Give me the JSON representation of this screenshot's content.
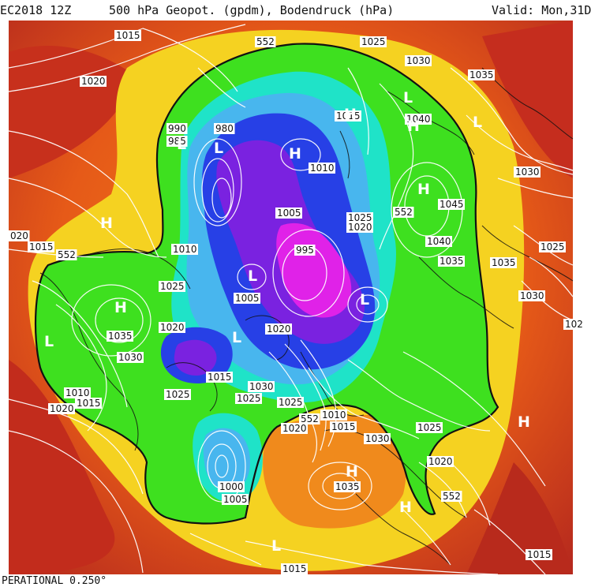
{
  "header": {
    "run": "EC2018 12Z",
    "title": "500 hPa Geopot. (gpdm), Bodendruck (hPa)",
    "valid": "Valid: Mon,31D"
  },
  "footer": {
    "text": "PERATIONAL 0.250°"
  },
  "colors": {
    "deep_red": "#b3261e",
    "red": "#d6431b",
    "orange": "#ef7a18",
    "yellow": "#f5d221",
    "green": "#3ee01f",
    "cyan": "#1fe3c8",
    "light_blue": "#48b6ee",
    "blue": "#2740e6",
    "purple": "#7a22e0",
    "magenta": "#e022e8",
    "isobar": "#ffffff",
    "coast": "#111111"
  },
  "contour_labels": [
    {
      "text": "1015"
    },
    {
      "text": "1020"
    },
    {
      "text": "552"
    },
    {
      "text": "1025"
    },
    {
      "text": "1030"
    },
    {
      "text": "1035"
    },
    {
      "text": "990"
    },
    {
      "text": "985"
    },
    {
      "text": "980"
    },
    {
      "text": "1015"
    },
    {
      "text": "1040"
    },
    {
      "text": "1010"
    },
    {
      "text": "1030"
    },
    {
      "text": "1005"
    },
    {
      "text": "1025"
    },
    {
      "text": "1020"
    },
    {
      "text": "552"
    },
    {
      "text": "1045"
    },
    {
      "text": "995"
    },
    {
      "text": "1040"
    },
    {
      "text": "1035"
    },
    {
      "text": "1035"
    },
    {
      "text": "1025"
    },
    {
      "text": "020"
    },
    {
      "text": "1015"
    },
    {
      "text": "552"
    },
    {
      "text": "1010"
    },
    {
      "text": "1025"
    },
    {
      "text": "1005"
    },
    {
      "text": "1030"
    },
    {
      "text": "102"
    },
    {
      "text": "1035"
    },
    {
      "text": "1030"
    },
    {
      "text": "1020"
    },
    {
      "text": "1020"
    },
    {
      "text": "1015"
    },
    {
      "text": "1030"
    },
    {
      "text": "1025"
    },
    {
      "text": "1025"
    },
    {
      "text": "1010"
    },
    {
      "text": "1015"
    },
    {
      "text": "1030"
    },
    {
      "text": "1010"
    },
    {
      "text": "1015"
    },
    {
      "text": "1020"
    },
    {
      "text": "1025"
    },
    {
      "text": "1020"
    },
    {
      "text": "1000"
    },
    {
      "text": "1005"
    },
    {
      "text": "1035"
    },
    {
      "text": "552"
    },
    {
      "text": "1015"
    },
    {
      "text": "1015"
    },
    {
      "text": "1020"
    },
    {
      "text": "1025"
    },
    {
      "text": "552"
    }
  ],
  "pressure_centers": [
    {
      "type": "L"
    },
    {
      "type": "L"
    },
    {
      "type": "H"
    },
    {
      "type": "H"
    },
    {
      "type": "L"
    },
    {
      "type": "H"
    },
    {
      "type": "H"
    },
    {
      "type": "H"
    },
    {
      "type": "L"
    },
    {
      "type": "L"
    },
    {
      "type": "L"
    },
    {
      "type": "H"
    },
    {
      "type": "L"
    },
    {
      "type": "H"
    },
    {
      "type": "L"
    },
    {
      "type": "H"
    },
    {
      "type": "L"
    },
    {
      "type": "H"
    }
  ]
}
